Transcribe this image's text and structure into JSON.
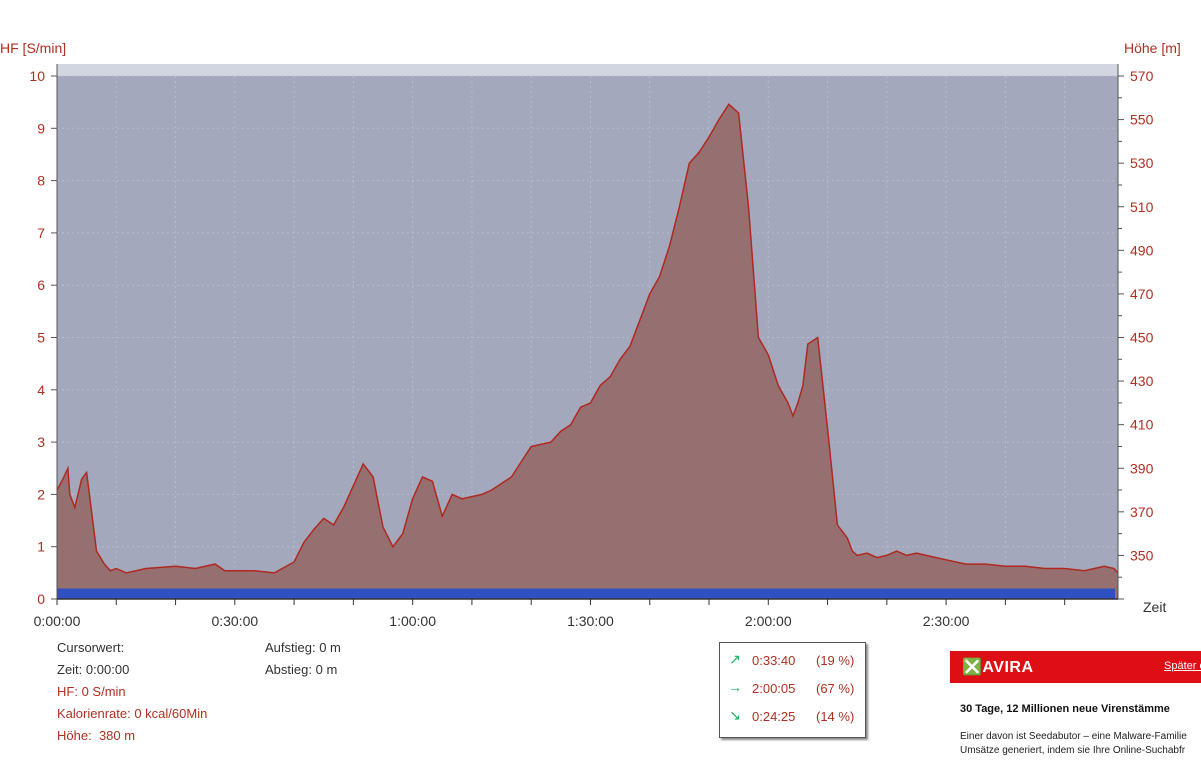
{
  "chart_data": {
    "type": "area",
    "ylabel_left": "HF [S/min]",
    "ylabel_right": "Höhe [m]",
    "xlabel": "Zeit",
    "x_unit": "seconds",
    "xlim": [
      0,
      10740
    ],
    "ylim_left": [
      0,
      10
    ],
    "ylim_right": [
      330,
      570
    ],
    "left_ticks": [
      0,
      1,
      2,
      3,
      4,
      5,
      6,
      7,
      8,
      9,
      10
    ],
    "right_ticks": [
      350,
      370,
      390,
      410,
      430,
      450,
      470,
      490,
      510,
      530,
      550,
      570
    ],
    "x_ticks": [
      {
        "value": 0,
        "label": "0:00:00"
      },
      {
        "value": 1800,
        "label": "0:30:00"
      },
      {
        "value": 3600,
        "label": "1:00:00"
      },
      {
        "value": 5400,
        "label": "1:30:00"
      },
      {
        "value": 7200,
        "label": "2:00:00"
      },
      {
        "value": 9000,
        "label": "2:30:00"
      }
    ],
    "series": [
      {
        "axis": "right",
        "color": "#967070",
        "line_color": "#b02820",
        "x": [
          0,
          60,
          110,
          130,
          180,
          250,
          300,
          350,
          400,
          480,
          540,
          600,
          700,
          900,
          1200,
          1400,
          1600,
          1700,
          1800,
          2000,
          2200,
          2400,
          2500,
          2600,
          2700,
          2800,
          2900,
          3000,
          3100,
          3200,
          3300,
          3400,
          3500,
          3600,
          3700,
          3800,
          3900,
          4000,
          4100,
          4200,
          4300,
          4400,
          4600,
          4800,
          5000,
          5100,
          5200,
          5300,
          5400,
          5500,
          5600,
          5700,
          5800,
          5900,
          6000,
          6100,
          6200,
          6300,
          6400,
          6500,
          6600,
          6700,
          6800,
          6900,
          7000,
          7100,
          7200,
          7300,
          7400,
          7450,
          7500,
          7550,
          7600,
          7700,
          7800,
          7900,
          8000,
          8050,
          8100,
          8200,
          8300,
          8400,
          8500,
          8600,
          8700,
          8800,
          8900,
          9000,
          9100,
          9200,
          9400,
          9600,
          9800,
          10000,
          10200,
          10400,
          10600,
          10700,
          10740
        ],
        "values": [
          380,
          385,
          390,
          378,
          372,
          385,
          388,
          370,
          352,
          346,
          343,
          344,
          342,
          344,
          345,
          344,
          346,
          343,
          343,
          343,
          342,
          347,
          356,
          362,
          367,
          364,
          372,
          382,
          392,
          386,
          363,
          354,
          360,
          376,
          386,
          384,
          368,
          378,
          376,
          377,
          378,
          380,
          386,
          400,
          402,
          407,
          410,
          418,
          420,
          428,
          432,
          440,
          446,
          458,
          470,
          478,
          492,
          510,
          530,
          535,
          542,
          550,
          557,
          553,
          510,
          450,
          442,
          428,
          420,
          414,
          420,
          428,
          447,
          450,
          408,
          364,
          358,
          352,
          350,
          351,
          349,
          350,
          352,
          350,
          351,
          350,
          349,
          348,
          347,
          346,
          346,
          345,
          345,
          344,
          344,
          343,
          345,
          344,
          342
        ]
      },
      {
        "axis": "left",
        "color": "#2f50c0",
        "x": [
          0,
          10740
        ],
        "values": [
          0.2,
          0.2
        ]
      }
    ]
  },
  "cursor_info": {
    "title": "Cursorwert:",
    "zeit_label": "Zeit:",
    "zeit_value": "0:00:00",
    "hf_label": "HF:",
    "hf_value": "0 S/min",
    "kal_label": "Kalorienrate:",
    "kal_value": "0 kcal/60Min",
    "hoehe_label": "Höhe:",
    "hoehe_value": "380 m"
  },
  "climb_info": {
    "aufstieg_label": "Aufstieg:",
    "aufstieg_value": "0 m",
    "abstieg_label": "Abstieg:",
    "abstieg_value": "0 m"
  },
  "stats": {
    "rows": [
      {
        "icon": "arrow-up-right-icon",
        "time": "0:33:40",
        "pct": "(19 %)"
      },
      {
        "icon": "arrow-right-icon",
        "time": "2:00:05",
        "pct": "(67 %)"
      },
      {
        "icon": "arrow-down-right-icon",
        "time": "0:24:25",
        "pct": "(14 %)"
      }
    ]
  },
  "ad": {
    "brand": "AVIRA",
    "later": "Später e",
    "title": "30 Tage, 12 Millionen neue Virenstämme",
    "body1": "Einer davon ist Seedabutor – eine Malware-Familie",
    "body2": "Umsätze generiert, indem sie Ihre Online-Suchabfr"
  },
  "colors": {
    "plot_bg": "#a3a8bc",
    "area_fill": "#967070",
    "area_line": "#b02820",
    "band": "#2f50c0",
    "axis_text": "#b03020",
    "ad_red": "#dd0f14",
    "arrow_green": "#22b060"
  }
}
